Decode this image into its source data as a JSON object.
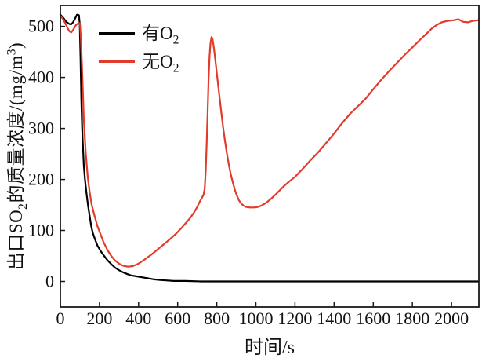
{
  "figure": {
    "background": "#ffffff",
    "frame_color": "#1a1a1a"
  },
  "axes": {
    "x_title": "时间/s",
    "y_title_parts": {
      "p1": "出口SO",
      "sub1": "2",
      "p2": "的质量浓度/(mg/m",
      "sup1": "3",
      "p3": ")"
    },
    "x_tick_labels": [
      "0",
      "200",
      "400",
      "600",
      "800",
      "1000",
      "1200",
      "1400",
      "1600",
      "1800",
      "2000"
    ],
    "y_tick_labels": [
      "0",
      "100",
      "200",
      "300",
      "400",
      "500"
    ]
  },
  "legend": {
    "items": [
      {
        "label_prefix": "有O",
        "label_sub": "2",
        "color": "#000000"
      },
      {
        "label_prefix": "无O",
        "label_sub": "2",
        "color": "#e23b2c"
      }
    ]
  },
  "chart_data": {
    "type": "line",
    "title": "",
    "xlabel": "时间/s",
    "ylabel": "出口SO2的质量浓度/(mg/m3)",
    "xlim": [
      0,
      2140
    ],
    "ylim": [
      -50,
      541
    ],
    "xticks": [
      0,
      200,
      400,
      600,
      800,
      1000,
      1200,
      1400,
      1600,
      1800,
      2000
    ],
    "yticks": [
      0,
      100,
      200,
      300,
      400,
      500
    ],
    "grid": false,
    "legend_position": "top-left-inside",
    "series": [
      {
        "name": "有O2",
        "color": "#000000",
        "points": [
          [
            0,
            523
          ],
          [
            15,
            517
          ],
          [
            30,
            509
          ],
          [
            45,
            505
          ],
          [
            55,
            504
          ],
          [
            65,
            508
          ],
          [
            75,
            515
          ],
          [
            85,
            523
          ],
          [
            95,
            522
          ],
          [
            99,
            505
          ],
          [
            103,
            440
          ],
          [
            107,
            360
          ],
          [
            111,
            305
          ],
          [
            116,
            262
          ],
          [
            120,
            228
          ],
          [
            126,
            200
          ],
          [
            134,
            172
          ],
          [
            142,
            148
          ],
          [
            150,
            128
          ],
          [
            158,
            108
          ],
          [
            166,
            95
          ],
          [
            176,
            84
          ],
          [
            190,
            70
          ],
          [
            205,
            60
          ],
          [
            220,
            52
          ],
          [
            240,
            42
          ],
          [
            260,
            34
          ],
          [
            280,
            27
          ],
          [
            300,
            22
          ],
          [
            320,
            18
          ],
          [
            340,
            15
          ],
          [
            360,
            12
          ],
          [
            390,
            10
          ],
          [
            420,
            8
          ],
          [
            450,
            6
          ],
          [
            480,
            4
          ],
          [
            510,
            3
          ],
          [
            540,
            2
          ],
          [
            580,
            1
          ],
          [
            640,
            1
          ],
          [
            720,
            0
          ],
          [
            900,
            0
          ],
          [
            1100,
            0
          ],
          [
            1300,
            0
          ],
          [
            1500,
            0
          ],
          [
            1700,
            0
          ],
          [
            1900,
            0
          ],
          [
            2135,
            0
          ]
        ]
      },
      {
        "name": "无O2",
        "color": "#e23b2c",
        "points": [
          [
            0,
            520
          ],
          [
            15,
            514
          ],
          [
            30,
            502
          ],
          [
            45,
            491
          ],
          [
            55,
            488
          ],
          [
            65,
            493
          ],
          [
            80,
            503
          ],
          [
            95,
            507
          ],
          [
            100,
            505
          ],
          [
            105,
            478
          ],
          [
            110,
            430
          ],
          [
            115,
            375
          ],
          [
            120,
            318
          ],
          [
            130,
            252
          ],
          [
            140,
            205
          ],
          [
            150,
            175
          ],
          [
            160,
            151
          ],
          [
            175,
            128
          ],
          [
            190,
            108
          ],
          [
            205,
            93
          ],
          [
            220,
            78
          ],
          [
            240,
            62
          ],
          [
            260,
            50
          ],
          [
            280,
            41
          ],
          [
            300,
            35
          ],
          [
            320,
            31
          ],
          [
            345,
            29
          ],
          [
            370,
            30
          ],
          [
            395,
            34
          ],
          [
            420,
            40
          ],
          [
            445,
            47
          ],
          [
            470,
            54
          ],
          [
            495,
            62
          ],
          [
            520,
            70
          ],
          [
            545,
            78
          ],
          [
            570,
            86
          ],
          [
            595,
            95
          ],
          [
            620,
            105
          ],
          [
            645,
            116
          ],
          [
            665,
            125
          ],
          [
            685,
            136
          ],
          [
            700,
            146
          ],
          [
            712,
            156
          ],
          [
            722,
            163
          ],
          [
            732,
            170
          ],
          [
            738,
            182
          ],
          [
            743,
            215
          ],
          [
            748,
            270
          ],
          [
            753,
            330
          ],
          [
            758,
            395
          ],
          [
            763,
            442
          ],
          [
            768,
            468
          ],
          [
            773,
            479
          ],
          [
            778,
            476
          ],
          [
            785,
            458
          ],
          [
            793,
            432
          ],
          [
            802,
            402
          ],
          [
            812,
            368
          ],
          [
            822,
            335
          ],
          [
            832,
            303
          ],
          [
            842,
            275
          ],
          [
            852,
            250
          ],
          [
            862,
            228
          ],
          [
            872,
            209
          ],
          [
            882,
            194
          ],
          [
            892,
            180
          ],
          [
            902,
            169
          ],
          [
            912,
            160
          ],
          [
            922,
            154
          ],
          [
            935,
            149
          ],
          [
            950,
            146
          ],
          [
            970,
            145
          ],
          [
            990,
            145
          ],
          [
            1010,
            146
          ],
          [
            1030,
            149
          ],
          [
            1055,
            155
          ],
          [
            1080,
            163
          ],
          [
            1110,
            174
          ],
          [
            1140,
            186
          ],
          [
            1170,
            196
          ],
          [
            1200,
            205
          ],
          [
            1240,
            221
          ],
          [
            1280,
            238
          ],
          [
            1320,
            254
          ],
          [
            1360,
            272
          ],
          [
            1400,
            290
          ],
          [
            1440,
            310
          ],
          [
            1480,
            328
          ],
          [
            1520,
            343
          ],
          [
            1560,
            358
          ],
          [
            1600,
            377
          ],
          [
            1640,
            395
          ],
          [
            1680,
            412
          ],
          [
            1720,
            428
          ],
          [
            1760,
            444
          ],
          [
            1800,
            459
          ],
          [
            1840,
            474
          ],
          [
            1870,
            485
          ],
          [
            1900,
            496
          ],
          [
            1925,
            503
          ],
          [
            1950,
            508
          ],
          [
            1980,
            511
          ],
          [
            2010,
            512
          ],
          [
            2035,
            514
          ],
          [
            2060,
            509
          ],
          [
            2085,
            508
          ],
          [
            2110,
            511
          ],
          [
            2135,
            512
          ]
        ]
      }
    ]
  }
}
